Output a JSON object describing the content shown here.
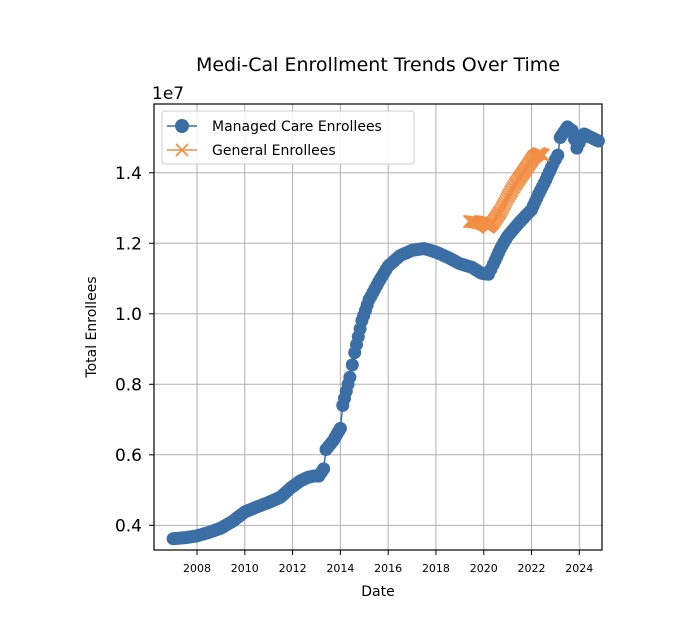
{
  "chart_data": {
    "type": "line",
    "title": "Medi-Cal Enrollment Trends Over Time",
    "xlabel": "Date",
    "ylabel": "Total Enrollees",
    "y_offset_label": "1e7",
    "xlim": [
      2006.2,
      2024.95
    ],
    "ylim": [
      3.3,
      15.95
    ],
    "x_ticks": [
      2008,
      2010,
      2012,
      2014,
      2016,
      2018,
      2020,
      2022,
      2024
    ],
    "y_ticks": [
      0.4,
      0.6,
      0.8,
      1.0,
      1.2,
      1.4
    ],
    "y_tick_labels": [
      "0.4",
      "0.6",
      "0.8",
      "1.0",
      "1.2",
      "1.4"
    ],
    "grid": true,
    "legend_position": "top-left",
    "series": [
      {
        "name": "Managed Care Enrollees",
        "color": "#3a6ea5",
        "marker": "circle",
        "anchors": [
          [
            2007.0,
            3.62
          ],
          [
            2007.5,
            3.65
          ],
          [
            2008.0,
            3.7
          ],
          [
            2008.5,
            3.8
          ],
          [
            2009.0,
            3.92
          ],
          [
            2009.5,
            4.12
          ],
          [
            2010.0,
            4.38
          ],
          [
            2010.5,
            4.52
          ],
          [
            2011.0,
            4.65
          ],
          [
            2011.5,
            4.8
          ],
          [
            2011.9,
            5.05
          ],
          [
            2012.3,
            5.25
          ],
          [
            2012.6,
            5.35
          ],
          [
            2012.9,
            5.4
          ],
          [
            2013.1,
            5.4
          ],
          [
            2013.3,
            5.6
          ],
          [
            2013.4,
            6.15
          ],
          [
            2013.7,
            6.4
          ],
          [
            2014.0,
            6.75
          ],
          [
            2014.1,
            7.4
          ],
          [
            2014.4,
            8.2
          ],
          [
            2014.6,
            8.9
          ],
          [
            2014.9,
            9.8
          ],
          [
            2015.2,
            10.4
          ],
          [
            2015.6,
            10.9
          ],
          [
            2016.0,
            11.35
          ],
          [
            2016.5,
            11.65
          ],
          [
            2017.0,
            11.8
          ],
          [
            2017.5,
            11.85
          ],
          [
            2018.0,
            11.75
          ],
          [
            2018.5,
            11.6
          ],
          [
            2019.0,
            11.42
          ],
          [
            2019.5,
            11.32
          ],
          [
            2019.9,
            11.15
          ],
          [
            2020.2,
            11.12
          ],
          [
            2020.4,
            11.4
          ],
          [
            2020.7,
            11.85
          ],
          [
            2021.0,
            12.2
          ],
          [
            2021.5,
            12.6
          ],
          [
            2022.0,
            12.95
          ],
          [
            2022.3,
            13.4
          ],
          [
            2022.6,
            13.8
          ],
          [
            2022.9,
            14.25
          ],
          [
            2023.1,
            14.5
          ],
          [
            2023.2,
            15.0
          ],
          [
            2023.5,
            15.3
          ],
          [
            2023.7,
            15.2
          ],
          [
            2023.9,
            14.7
          ],
          [
            2024.0,
            14.85
          ],
          [
            2024.2,
            15.1
          ],
          [
            2024.5,
            15.0
          ],
          [
            2024.8,
            14.9
          ]
        ]
      },
      {
        "name": "General Enrollees",
        "color": "#f28e44",
        "marker": "x",
        "anchors": [
          [
            2019.4,
            12.62
          ],
          [
            2019.7,
            12.6
          ],
          [
            2020.0,
            12.55
          ],
          [
            2020.2,
            12.45
          ],
          [
            2020.4,
            12.6
          ],
          [
            2020.7,
            12.9
          ],
          [
            2021.0,
            13.3
          ],
          [
            2021.3,
            13.65
          ],
          [
            2021.6,
            13.95
          ],
          [
            2021.9,
            14.25
          ],
          [
            2022.1,
            14.45
          ],
          [
            2022.3,
            14.55
          ],
          [
            2022.5,
            14.5
          ]
        ]
      }
    ]
  }
}
